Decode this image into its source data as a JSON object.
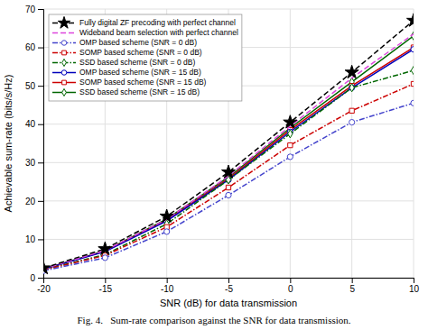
{
  "chart_data": {
    "type": "line",
    "xlabel": "SNR (dB) for data transmission",
    "ylabel": "Achievable sum-rate (bits/s/Hz)",
    "caption": "Fig. 4.   Sum-rate comparison against the SNR for data transmission.",
    "x": [
      -20,
      -15,
      -10,
      -5,
      0,
      5,
      10
    ],
    "xlim": [
      -20,
      10
    ],
    "ylim": [
      0,
      70
    ],
    "xticks": [
      -20,
      -15,
      -10,
      -5,
      0,
      5,
      10
    ],
    "yticks": [
      0,
      10,
      20,
      30,
      40,
      50,
      60,
      70
    ],
    "grid": true,
    "legend": "upper left",
    "series": [
      {
        "name": "Fully digital ZF precoding with perfect channel",
        "color": "#000000",
        "line_style": "dashed",
        "marker": "star",
        "values": [
          2.5,
          7.5,
          16.0,
          27.5,
          40.5,
          53.5,
          67.0
        ]
      },
      {
        "name": "Wideband beam selection with perfect channel",
        "color": "#dd44dd",
        "line_style": "dashed",
        "values": [
          2.3,
          7.1,
          15.2,
          26.5,
          39.5,
          52.0,
          63.5
        ]
      },
      {
        "name": "OMP based scheme (SNR = 0 dB)",
        "color": "#4444cc",
        "line_style": "dashdot",
        "marker": "circle",
        "values": [
          1.8,
          5.2,
          12.0,
          21.5,
          31.5,
          40.5,
          45.5
        ]
      },
      {
        "name": "SOMP based scheme (SNR = 0 dB)",
        "color": "#cc0000",
        "line_style": "dashdot",
        "marker": "square",
        "values": [
          2.0,
          5.8,
          13.2,
          23.5,
          34.5,
          43.5,
          50.5
        ]
      },
      {
        "name": "SSD based scheme (SNR = 0 dB)",
        "color": "#006600",
        "line_style": "dashdot",
        "marker": "diamond",
        "values": [
          2.1,
          6.0,
          14.0,
          25.5,
          37.5,
          49.5,
          54.0
        ]
      },
      {
        "name": "OMP based scheme (SNR = 15 dB)",
        "color": "#0000bb",
        "line_style": "solid",
        "marker": "circle",
        "values": [
          2.2,
          6.8,
          14.8,
          25.5,
          38.0,
          49.5,
          59.5
        ]
      },
      {
        "name": "SOMP based scheme (SNR = 15 dB)",
        "color": "#cc0000",
        "line_style": "solid",
        "marker": "square",
        "values": [
          2.2,
          6.9,
          15.0,
          25.8,
          38.5,
          50.0,
          60.0
        ]
      },
      {
        "name": "SSD based scheme (SNR = 15 dB)",
        "color": "#006600",
        "line_style": "solid",
        "marker": "diamond",
        "values": [
          2.3,
          7.0,
          15.3,
          26.2,
          39.0,
          51.0,
          63.0
        ]
      }
    ]
  }
}
